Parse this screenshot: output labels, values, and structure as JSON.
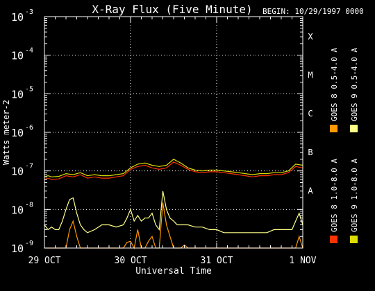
{
  "chart_data": {
    "type": "line",
    "title": "X-Ray Flux (Five Minute)",
    "begin_label": "BEGIN: 10/29/1997 0000",
    "xlabel": "Universal Time",
    "ylabel": "Watts meter-2",
    "y_scale": "log",
    "ylim": [
      1e-09,
      0.001
    ],
    "y_ticks": [
      {
        "exp": -9,
        "text": "10",
        "sup": "-9"
      },
      {
        "exp": -8,
        "text": "10",
        "sup": "-8"
      },
      {
        "exp": -7,
        "text": "10",
        "sup": "-7"
      },
      {
        "exp": -6,
        "text": "10",
        "sup": "-6"
      },
      {
        "exp": -5,
        "text": "10",
        "sup": "-5"
      },
      {
        "exp": -4,
        "text": "10",
        "sup": "-4"
      },
      {
        "exp": -3,
        "text": "10",
        "sup": "-3"
      }
    ],
    "x_range": [
      "1997-10-29 00:00",
      "1997-11-01 00:00"
    ],
    "x_ticks": [
      "29 OCT",
      "30 OCT",
      "31 OCT",
      "1 NOV"
    ],
    "flare_classes": [
      {
        "label": "A",
        "value": 1e-08
      },
      {
        "label": "B",
        "value": 1e-07
      },
      {
        "label": "C",
        "value": 1e-06
      },
      {
        "label": "M",
        "value": 1e-05
      },
      {
        "label": "X",
        "value": 0.0001
      }
    ],
    "grid": "dotted, at decades and day boundaries",
    "legend_placement": "right, vertical",
    "series": [
      {
        "name": "GOES 8 1.0-8.0 A",
        "color": "#ff3300",
        "x_hours": [
          0,
          1,
          2,
          4,
          6,
          8,
          10,
          12,
          14,
          16,
          18,
          20,
          22,
          24,
          26,
          28,
          30,
          32,
          34,
          36,
          38,
          40,
          42,
          44,
          46,
          48,
          50,
          52,
          54,
          56,
          58,
          60,
          62,
          64,
          66,
          68,
          70,
          72
        ],
        "values": [
          6e-08,
          6.5e-08,
          6e-08,
          6.2e-08,
          7.5e-08,
          7e-08,
          8e-08,
          6.5e-08,
          7e-08,
          6.5e-08,
          6.5e-08,
          7e-08,
          7.5e-08,
          1.1e-07,
          1.3e-07,
          1.4e-07,
          1.2e-07,
          1.1e-07,
          1.2e-07,
          1.7e-07,
          1.4e-07,
          1.1e-07,
          9.5e-08,
          9e-08,
          9.5e-08,
          9.5e-08,
          9e-08,
          8.5e-08,
          8e-08,
          7.5e-08,
          7e-08,
          7.5e-08,
          7.5e-08,
          8e-08,
          8e-08,
          9e-08,
          1.3e-07,
          1.2e-07
        ]
      },
      {
        "name": "GOES 8 0.5-4.0 A",
        "color": "#ff9900",
        "x_hours": [
          0,
          1,
          2,
          4,
          6,
          7,
          8,
          9,
          10,
          11,
          12,
          14,
          16,
          18,
          20,
          22,
          23,
          24,
          25,
          26,
          27,
          28,
          29,
          30,
          31,
          32,
          33,
          34,
          35,
          36,
          37,
          38,
          39,
          40,
          41,
          42,
          43,
          44,
          46,
          48,
          50,
          52,
          54,
          56,
          58,
          60,
          62,
          64,
          66,
          68,
          70,
          71,
          72
        ],
        "values": [
          1e-09,
          1e-09,
          1e-09,
          1e-09,
          1e-09,
          3e-09,
          5e-09,
          2e-09,
          1e-09,
          1e-09,
          1e-09,
          1e-09,
          1e-09,
          1e-09,
          1e-09,
          1e-09,
          1.4e-09,
          1.5e-09,
          1e-09,
          3e-09,
          1e-09,
          1e-09,
          1.5e-09,
          2e-09,
          1e-09,
          1e-09,
          1.5e-08,
          4e-09,
          2e-09,
          1e-09,
          1e-09,
          1e-09,
          1.2e-09,
          1e-09,
          1e-09,
          1e-09,
          1e-09,
          1e-09,
          1e-09,
          1e-09,
          1e-09,
          1e-09,
          1e-09,
          1e-09,
          1e-09,
          1e-09,
          1e-09,
          1e-09,
          1e-09,
          1e-09,
          1e-09,
          2e-09,
          1e-09
        ]
      },
      {
        "name": "GOES 9 1.0-8.0 A",
        "color": "#dddd00",
        "x_hours": [
          0,
          1,
          2,
          4,
          6,
          8,
          10,
          12,
          14,
          16,
          18,
          20,
          22,
          24,
          26,
          28,
          30,
          32,
          34,
          36,
          38,
          40,
          42,
          44,
          46,
          48,
          50,
          52,
          54,
          56,
          58,
          60,
          62,
          64,
          66,
          68,
          70,
          72
        ],
        "values": [
          7e-08,
          7.5e-08,
          7e-08,
          7.2e-08,
          8.5e-08,
          8e-08,
          9e-08,
          7.5e-08,
          8e-08,
          7.5e-08,
          7.5e-08,
          8e-08,
          8.5e-08,
          1.2e-07,
          1.5e-07,
          1.6e-07,
          1.4e-07,
          1.3e-07,
          1.4e-07,
          2e-07,
          1.6e-07,
          1.2e-07,
          1.05e-07,
          1e-07,
          1.05e-07,
          1.05e-07,
          1e-07,
          9.5e-08,
          9e-08,
          8.5e-08,
          8e-08,
          8.5e-08,
          8.5e-08,
          9e-08,
          9e-08,
          1e-07,
          1.5e-07,
          1.4e-07
        ]
      },
      {
        "name": "GOES 9 0.5-4.0 A",
        "color": "#ffff88",
        "x_hours": [
          0,
          1,
          2,
          3,
          4,
          5,
          6,
          7,
          8,
          9,
          10,
          11,
          12,
          14,
          16,
          18,
          20,
          22,
          23,
          24,
          25,
          26,
          27,
          28,
          29,
          30,
          31,
          32,
          33,
          34,
          35,
          36,
          37,
          38,
          39,
          40,
          42,
          44,
          46,
          48,
          50,
          52,
          54,
          56,
          58,
          60,
          62,
          64,
          66,
          68,
          69,
          70,
          71,
          72
        ],
        "values": [
          4e-09,
          3e-09,
          3.5e-09,
          3e-09,
          3e-09,
          5e-09,
          1e-08,
          1.8e-08,
          2e-08,
          8e-09,
          4e-09,
          3e-09,
          2.5e-09,
          3e-09,
          4e-09,
          4e-09,
          3.5e-09,
          4e-09,
          6e-09,
          1e-08,
          5e-09,
          7e-09,
          5e-09,
          6e-09,
          6e-09,
          8e-09,
          4e-09,
          3e-09,
          3e-08,
          1e-08,
          6e-09,
          5e-09,
          4e-09,
          4e-09,
          4e-09,
          4e-09,
          3.5e-09,
          3.5e-09,
          3e-09,
          3e-09,
          2.5e-09,
          2.5e-09,
          2.5e-09,
          2.5e-09,
          2.5e-09,
          2.5e-09,
          2.5e-09,
          3e-09,
          3e-09,
          3e-09,
          3e-09,
          5e-09,
          8e-09,
          4e-09
        ]
      }
    ]
  }
}
